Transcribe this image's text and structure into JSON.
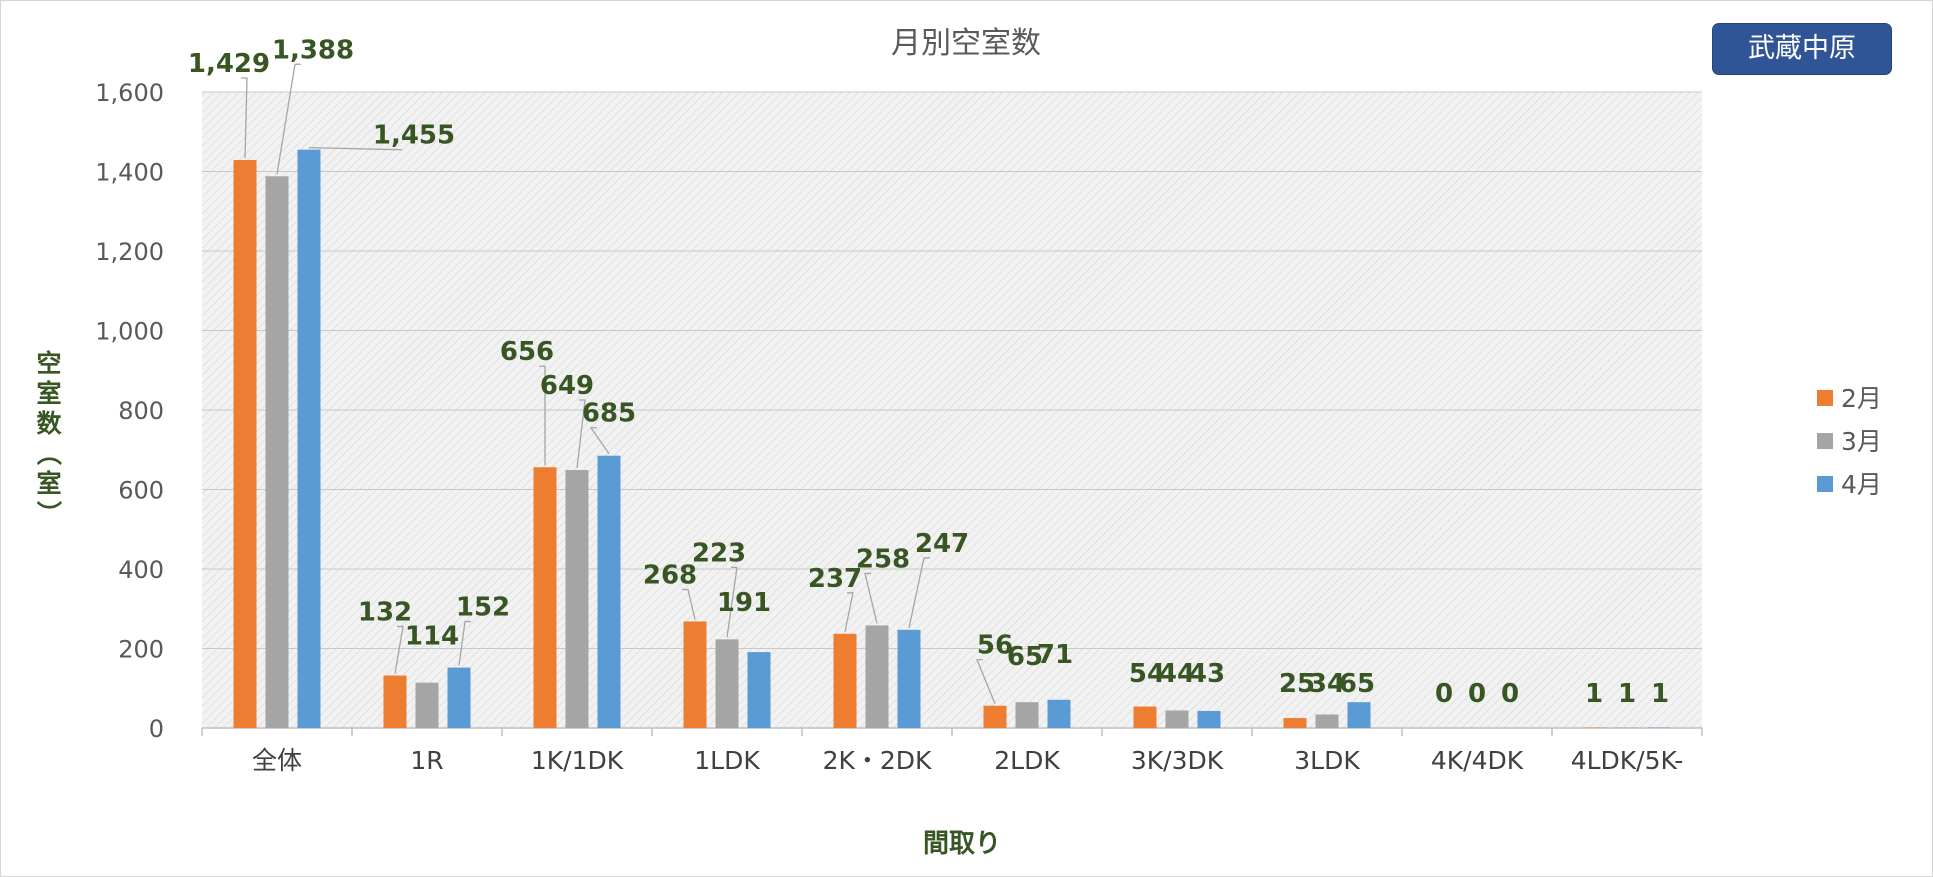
{
  "badge": {
    "label": "武蔵中原"
  },
  "chart_data": {
    "type": "bar",
    "title": "月別空室数",
    "xlabel": "間取り",
    "ylabel": "空室数（室）",
    "ylim": [
      0,
      1600
    ],
    "yticks": [
      0,
      200,
      400,
      600,
      800,
      1000,
      1200,
      1400,
      1600
    ],
    "ytick_labels": [
      "0",
      "200",
      "400",
      "600",
      "800",
      "1,000",
      "1,200",
      "1,400",
      "1,600"
    ],
    "categories": [
      "全体",
      "1R",
      "1K/1DK",
      "1LDK",
      "2K・2DK",
      "2LDK",
      "3K/3DK",
      "3LDK",
      "4K/4DK",
      "4LDK/5K-"
    ],
    "series": [
      {
        "name": "2月",
        "color": "#ed7d31",
        "values": [
          1429,
          132,
          656,
          268,
          237,
          56,
          54,
          25,
          0,
          1
        ]
      },
      {
        "name": "3月",
        "color": "#a5a5a5",
        "values": [
          1388,
          114,
          649,
          223,
          258,
          65,
          44,
          34,
          0,
          1
        ]
      },
      {
        "name": "4月",
        "color": "#5b9bd5",
        "values": [
          1455,
          152,
          685,
          191,
          247,
          71,
          43,
          65,
          0,
          1
        ]
      }
    ],
    "data_label_text": [
      [
        "1,429",
        "132",
        "656",
        "268",
        "237",
        "56",
        "54",
        "25",
        "0",
        "1"
      ],
      [
        "1,388",
        "114",
        "649",
        "223",
        "258",
        "65",
        "44",
        "34",
        "0",
        "1"
      ],
      [
        "1,455",
        "152",
        "685",
        "191",
        "247",
        "71",
        "43",
        "65",
        "0",
        "1"
      ]
    ],
    "legend_position": "right",
    "grid": true,
    "plot_background": "hatched-light-gray"
  }
}
